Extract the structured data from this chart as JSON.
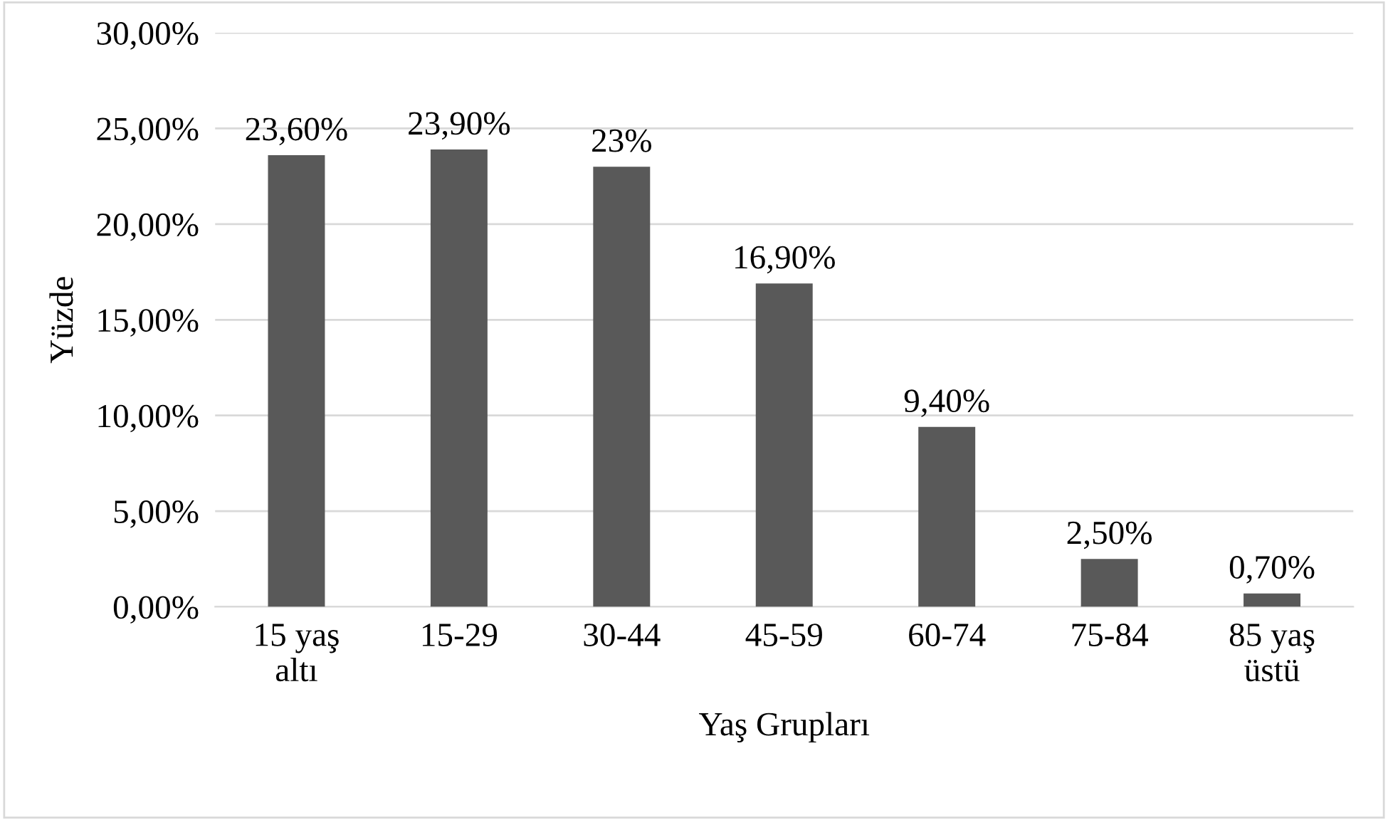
{
  "chart_data": {
    "type": "bar",
    "xlabel": "Yaş Grupları",
    "ylabel": "Yüzde",
    "categories": [
      "15 yaş\naltı",
      "15-29",
      "30-44",
      "45-59",
      "60-74",
      "75-84",
      "85 yaş\nüstü"
    ],
    "values": [
      23.6,
      23.9,
      23,
      16.9,
      9.4,
      2.5,
      0.7
    ],
    "value_labels": [
      "23,60%",
      "23,90%",
      "23%",
      "16,90%",
      "9,40%",
      "2,50%",
      "0,70%"
    ],
    "color": "#595959",
    "ylim": [
      0,
      30
    ],
    "yticks": [
      {
        "value": 0,
        "label": "0,00%"
      },
      {
        "value": 5,
        "label": "5,00%"
      },
      {
        "value": 10,
        "label": "10,00%"
      },
      {
        "value": 15,
        "label": "15,00%"
      },
      {
        "value": 20,
        "label": "20,00%"
      },
      {
        "value": 25,
        "label": "25,00%"
      },
      {
        "value": 30,
        "label": "30,00%"
      }
    ],
    "grid": "y"
  }
}
